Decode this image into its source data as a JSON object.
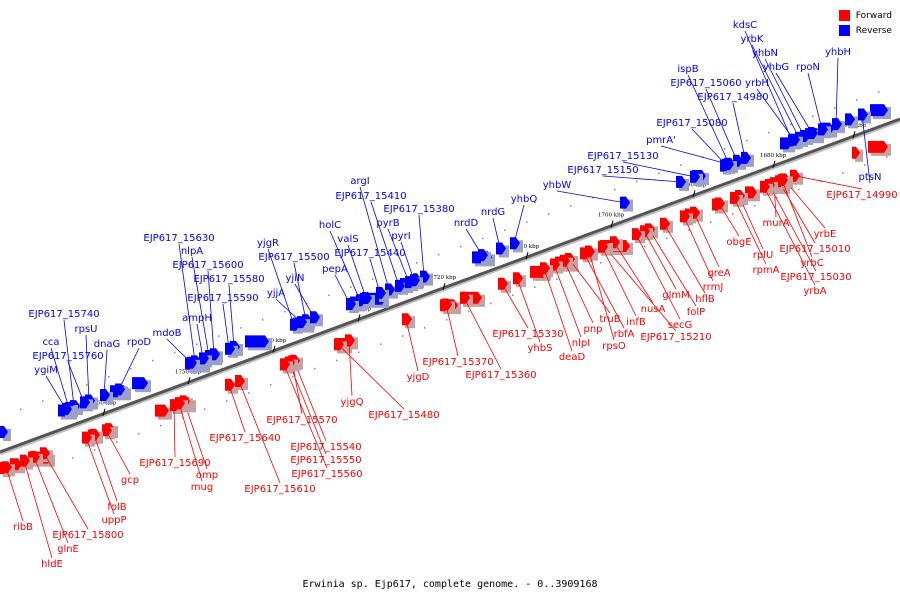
{
  "legend": {
    "forward_label": "Forward",
    "reverse_label": "Reverse",
    "forward_color": "#ff0000",
    "reverse_color": "#0000ff"
  },
  "caption": "Erwinia sp. Ejp617, complete genome. - 0..3909168",
  "axis": {
    "ticks": [
      "1670 kbp",
      "1680 kbp",
      "1690 kbp",
      "1700 kbp",
      "1710 kbp",
      "1720 kbp",
      "1730 kbp",
      "1740 kbp",
      "1750 kbp",
      "1760 kbp"
    ]
  },
  "reverse_genes": [
    "kdsC",
    "yrbK",
    "yhbN",
    "yhbG",
    "rpoN",
    "yhbH",
    "ispB",
    "EJP617_15060",
    "yrbH",
    "EJP617_14980",
    "EJP617_15080",
    "pmrA'",
    "EJP617_15130",
    "EJP617_15150",
    "yhbW",
    "argI",
    "EJP617_15410",
    "pyrB",
    "EJP617_15380",
    "pyrI",
    "yhbQ",
    "nrdG",
    "nrdD",
    "holC",
    "valS",
    "EJP617_15440",
    "pepA",
    "yjgR",
    "EJP617_15500",
    "yjiN",
    "yjjA",
    "EJP617_15630",
    "nlpA",
    "EJP617_15600",
    "EJP617_15580",
    "EJP617_15590",
    "ampH",
    "mdoB",
    "rpoD",
    "EJP617_15740",
    "rpsU",
    "dnaG",
    "cca",
    "EJP617_15760",
    "ygiM",
    "ptsN"
  ],
  "forward_genes": [
    "EJP617_14990",
    "murA",
    "yrbE",
    "EJP617_15010",
    "yrbC",
    "EJP617_15030",
    "yrbA",
    "obgE",
    "rplU",
    "rpmA",
    "greA",
    "rrmJ",
    "hflB",
    "folP",
    "glmM",
    "secG",
    "nusA",
    "EJP617_15210",
    "infB",
    "rbfA",
    "truB",
    "rpsO",
    "pnp",
    "nlpI",
    "deaD",
    "yhbS",
    "EJP617_15330",
    "EJP617_15370",
    "EJP617_15360",
    "yjgD",
    "yjgQ",
    "EJP617_15480",
    "EJP617_15570",
    "EJP617_15540",
    "EJP617_15550",
    "EJP617_15560",
    "EJP617_15640",
    "EJP617_15610",
    "EJP617_15690",
    "omp",
    "mug",
    "gcp",
    "folB",
    "uppP",
    "EJP617_15800",
    "glnE",
    "hldE",
    "ribB"
  ]
}
